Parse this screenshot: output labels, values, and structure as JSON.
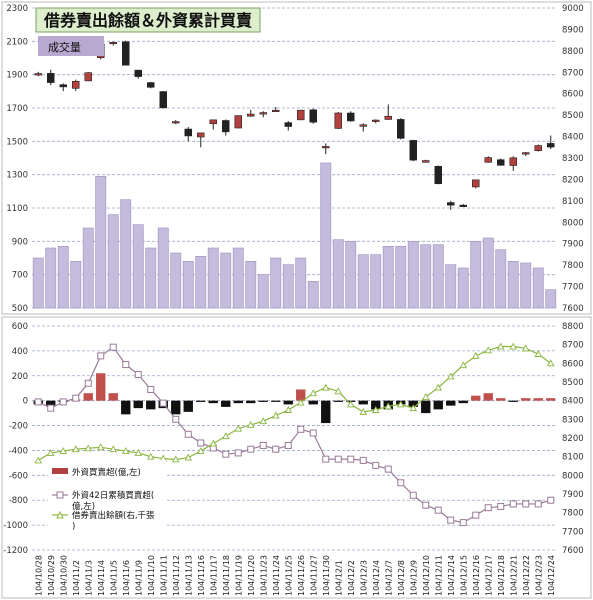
{
  "chart_data": [
    {
      "type": "candlestick+bar",
      "title": "借券賣出餘額＆外資累計買賣",
      "volume_label": "成交量",
      "left_axis": {
        "ticks": [
          "500",
          "700",
          "900",
          "1100",
          "1300",
          "1500",
          "1700",
          "1900",
          "2100",
          "2300"
        ],
        "ylim": [
          500,
          2300
        ]
      },
      "right_axis": {
        "ticks": [
          "7600",
          "7700",
          "7800",
          "7900",
          "8000",
          "8100",
          "8200",
          "8300",
          "8400",
          "8500",
          "8600",
          "8700",
          "8800",
          "8900",
          "9000"
        ],
        "ylim": [
          7600,
          9000
        ]
      },
      "categories": [
        "104/10/28",
        "104/10/29",
        "104/10/30",
        "104/11/2",
        "104/11/3",
        "104/11/4",
        "104/11/5",
        "104/11/6",
        "104/11/9",
        "104/11/10",
        "104/11/11",
        "104/11/12",
        "104/11/13",
        "104/11/16",
        "104/11/17",
        "104/11/18",
        "104/11/19",
        "104/11/20",
        "104/11/23",
        "104/11/24",
        "104/11/25",
        "104/11/26",
        "104/11/27",
        "104/11/30",
        "104/12/1",
        "104/12/2",
        "104/12/3",
        "104/12/4",
        "104/12/7",
        "104/12/8",
        "104/12/9",
        "104/12/10",
        "104/12/11",
        "104/12/14",
        "104/12/15",
        "104/12/16",
        "104/12/17",
        "104/12/18",
        "104/12/21",
        "104/12/22",
        "104/12/23",
        "104/12/24"
      ],
      "volume": [
        800,
        860,
        870,
        780,
        980,
        1290,
        1060,
        1150,
        1000,
        860,
        980,
        830,
        780,
        810,
        860,
        830,
        860,
        780,
        700,
        800,
        760,
        800,
        660,
        1370,
        910,
        900,
        820,
        820,
        870,
        870,
        900,
        880,
        880,
        760,
        740,
        900,
        920,
        850,
        780,
        770,
        740,
        610
      ],
      "ohlc": [
        [
          8688,
          8702,
          8682,
          8694
        ],
        [
          8695,
          8712,
          8640,
          8652
        ],
        [
          8642,
          8648,
          8612,
          8632
        ],
        [
          8625,
          8666,
          8613,
          8658
        ],
        [
          8660,
          8701,
          8658,
          8698
        ],
        [
          8768,
          8835,
          8760,
          8833
        ],
        [
          8834,
          8843,
          8825,
          8840
        ],
        [
          8842,
          8848,
          8732,
          8733
        ],
        [
          8710,
          8712,
          8670,
          8680
        ],
        [
          8652,
          8655,
          8625,
          8630
        ],
        [
          8610,
          8612,
          8532,
          8534
        ],
        [
          8470,
          8477,
          8458,
          8470
        ],
        [
          8435,
          8445,
          8378,
          8403
        ],
        [
          8398,
          8418,
          8350,
          8417
        ],
        [
          8460,
          8480,
          8433,
          8478
        ],
        [
          8475,
          8480,
          8405,
          8422
        ],
        [
          8440,
          8498,
          8438,
          8498
        ],
        [
          8495,
          8525,
          8492,
          8505
        ],
        [
          8505,
          8518,
          8490,
          8512
        ],
        [
          8520,
          8538,
          8518,
          8523
        ],
        [
          8465,
          8473,
          8428,
          8447
        ],
        [
          8478,
          8525,
          8478,
          8523
        ],
        [
          8525,
          8530,
          8460,
          8467
        ],
        [
          8350,
          8368,
          8318,
          8354
        ],
        [
          8438,
          8515,
          8435,
          8510
        ],
        [
          8510,
          8518,
          8470,
          8473
        ],
        [
          8448,
          8462,
          8423,
          8455
        ],
        [
          8473,
          8480,
          8462,
          8477
        ],
        [
          8480,
          8550,
          8478,
          8495
        ],
        [
          8480,
          8486,
          8387,
          8392
        ],
        [
          8382,
          8385,
          8285,
          8290
        ],
        [
          8280,
          8292,
          8278,
          8288
        ],
        [
          8261,
          8265,
          8177,
          8180
        ],
        [
          8092,
          8100,
          8058,
          8080
        ],
        [
          8080,
          8085,
          8073,
          8078
        ],
        [
          8165,
          8200,
          8158,
          8198
        ],
        [
          8280,
          8308,
          8278,
          8302
        ],
        [
          8292,
          8298,
          8264,
          8266
        ],
        [
          8265,
          8308,
          8240,
          8301
        ],
        [
          8322,
          8328,
          8310,
          8325
        ],
        [
          8334,
          8363,
          8330,
          8358
        ],
        [
          8368,
          8405,
          8342,
          8351
        ]
      ],
      "bottom_left_axis": {
        "ticks": [
          "-1200",
          "-1000",
          "-800",
          "-600",
          "-400",
          "-200",
          "0",
          "200",
          "400",
          "600"
        ],
        "ylim": [
          -1200,
          600
        ]
      },
      "bottom_right_axis": {
        "ticks": [
          "7600",
          "7700",
          "7800",
          "7900",
          "8000",
          "8100",
          "8200",
          "8300",
          "8400",
          "8500",
          "8600",
          "8700",
          "8800"
        ],
        "ylim": [
          7600,
          8800
        ]
      },
      "series": [
        {
          "name": "外資買賣超(億,左)",
          "type": "bar",
          "values": [
            -30,
            -40,
            -10,
            10,
            60,
            220,
            60,
            -110,
            -60,
            -70,
            -60,
            -110,
            -90,
            -10,
            -20,
            -50,
            -20,
            -20,
            -10,
            -10,
            -30,
            90,
            -30,
            -180,
            -10,
            -10,
            -30,
            -70,
            -70,
            -30,
            -50,
            -100,
            -70,
            -40,
            -20,
            40,
            60,
            20,
            -10,
            20,
            20,
            20
          ]
        },
        {
          "name": "外資42日累積買賣超(億,左)",
          "type": "line",
          "values": [
            -10,
            -60,
            -10,
            20,
            140,
            360,
            430,
            290,
            210,
            90,
            -20,
            -150,
            -270,
            -340,
            -380,
            -430,
            -420,
            -390,
            -360,
            -390,
            -360,
            -230,
            -260,
            -470,
            -470,
            -470,
            -480,
            -520,
            -550,
            -660,
            -760,
            -840,
            -880,
            -960,
            -980,
            -920,
            -860,
            -850,
            -830,
            -830,
            -830,
            -800
          ]
        },
        {
          "name": "借券賣出餘額(右,千張)",
          "type": "line",
          "values": [
            8080,
            8120,
            8130,
            8140,
            8145,
            8150,
            8140,
            8130,
            8120,
            8100,
            8090,
            8085,
            8095,
            8130,
            8170,
            8210,
            8250,
            8270,
            8290,
            8320,
            8350,
            8390,
            8440,
            8470,
            8450,
            8380,
            8340,
            8350,
            8370,
            8380,
            8360,
            8420,
            8470,
            8530,
            8590,
            8640,
            8670,
            8690,
            8690,
            8680,
            8650,
            8600
          ]
        }
      ]
    }
  ]
}
